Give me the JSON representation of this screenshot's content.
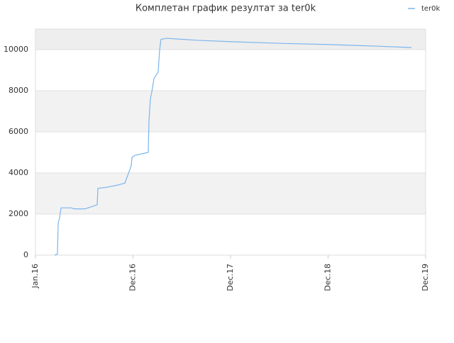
{
  "chart_data": {
    "type": "line",
    "title": "Комплетан график резултат за ter0k",
    "x": [
      0.196,
      0.225,
      0.233,
      0.247,
      0.262,
      0.276,
      0.364,
      0.4,
      0.509,
      0.633,
      0.64,
      0.727,
      0.836,
      0.916,
      0.982,
      0.989,
      1.018,
      1.156,
      1.164,
      1.178,
      1.193,
      1.215,
      1.258,
      1.273,
      1.287,
      1.345,
      1.673,
      2.036,
      2.545,
      2.982,
      3.491,
      3.855
    ],
    "series": [
      {
        "name": "ter0k",
        "color": "#7cb5ec",
        "values": [
          0,
          50,
          1550,
          1800,
          2300,
          2300,
          2300,
          2250,
          2250,
          2450,
          3250,
          3300,
          3400,
          3500,
          4350,
          4750,
          4850,
          5000,
          6550,
          7600,
          7950,
          8600,
          8900,
          10000,
          10500,
          10550,
          10450,
          10380,
          10300,
          10250,
          10170,
          10100
        ]
      }
    ],
    "xlim": [
      0,
      4
    ],
    "xticks": [
      {
        "value": 0,
        "label": "Jan.16"
      },
      {
        "value": 1,
        "label": "Dec.16"
      },
      {
        "value": 2,
        "label": "Dec.17"
      },
      {
        "value": 3,
        "label": "Dec.18"
      },
      {
        "value": 4,
        "label": "Dec.19"
      }
    ],
    "ylim": [
      0,
      11000
    ],
    "yticks": [
      0,
      2000,
      4000,
      6000,
      8000,
      10000
    ],
    "grid": true,
    "legend": "top-right"
  }
}
